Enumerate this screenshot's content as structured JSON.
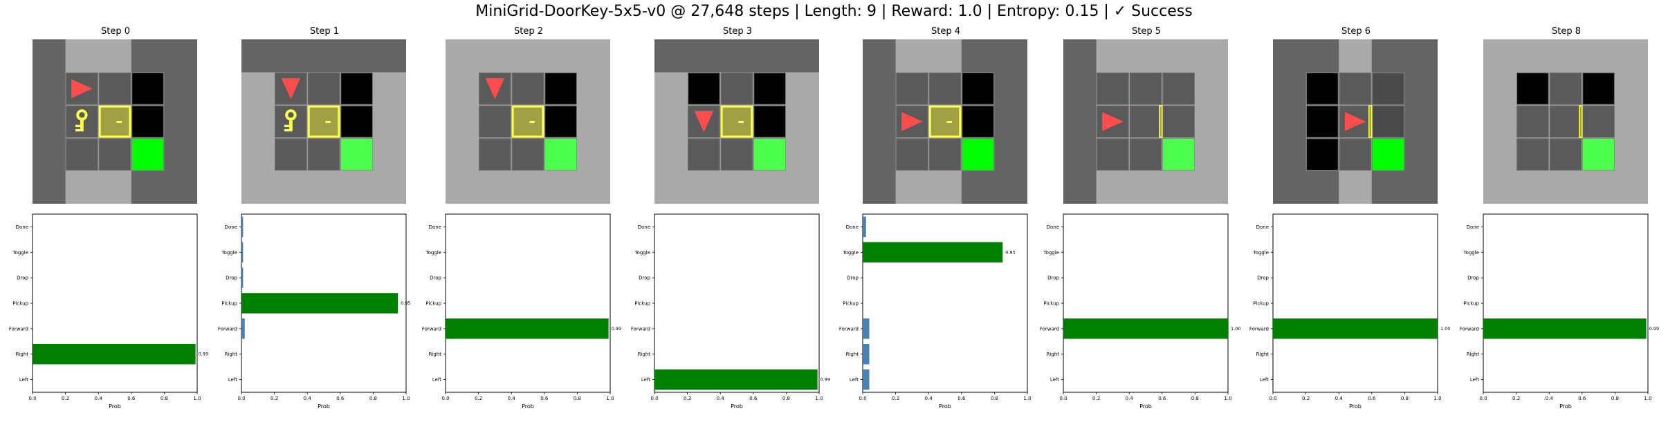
{
  "title": "MiniGrid-DoorKey-5x5-v0 @ 27,648 steps | Length: 9 | Reward: 1.0 | Entropy: 0.15 | ✓ Success",
  "colors": {
    "wall": "#646464",
    "floor": "#8e8e8e",
    "floor_visible": "#a9a9a9",
    "unseen": "#000000",
    "agent": "#ff4d4d",
    "key": "#ffff4d",
    "door_fill": "#a0a044",
    "door_border": "#ffff4d",
    "goal": "#00ff00",
    "goal_visible": "#4dff4d",
    "bar_top": "#008000",
    "bar_other": "#4682b4"
  },
  "steps": [
    {
      "label": "Step 0",
      "grid": {
        "cells": [
          [
            "W",
            "W",
            "W",
            "W",
            "W"
          ],
          [
            "W",
            "A>",
            "F",
            "U",
            "W"
          ],
          [
            "W",
            "K",
            "D",
            "U",
            "W"
          ],
          [
            "W",
            "F",
            "F",
            "G",
            "W"
          ],
          [
            "W",
            "W",
            "W",
            "W",
            "W"
          ]
        ],
        "dim": [
          [
            0,
            0,
            1,
            1,
            1,
            0
          ],
          [
            0,
            0,
            0,
            0,
            0,
            1
          ],
          [
            1,
            0,
            0,
            0,
            0,
            0
          ],
          [
            1,
            1,
            1,
            1,
            1,
            0
          ],
          [
            1,
            0,
            1,
            1,
            1,
            1
          ],
          [
            1,
            1,
            1,
            1,
            1,
            1
          ]
        ]
      },
      "chart_data": {
        "type": "bar",
        "orientation": "horizontal",
        "categories": [
          "Left",
          "Right",
          "Forward",
          "Pickup",
          "Drop",
          "Toggle",
          "Done"
        ],
        "values": [
          0.0,
          0.99,
          0.0,
          0.0,
          0.0,
          0.0,
          0.0
        ],
        "value_label": "0.99",
        "xlabel": "Prob",
        "xlim": [
          0,
          1
        ],
        "xticks": [
          "0.0",
          "0.2",
          "0.4",
          "0.6",
          "0.8",
          "1.0"
        ]
      }
    },
    {
      "label": "Step 1",
      "grid": {
        "cells": [
          [
            "W",
            "W",
            "W",
            "W",
            "W"
          ],
          [
            "W",
            "Av",
            "F",
            "U",
            "W"
          ],
          [
            "W",
            "K",
            "D",
            "U",
            "W"
          ],
          [
            "W",
            "F",
            "F",
            "G",
            "W"
          ],
          [
            "W",
            "W",
            "W",
            "W",
            "W"
          ]
        ]
      },
      "chart_data": {
        "type": "bar",
        "orientation": "horizontal",
        "categories": [
          "Left",
          "Right",
          "Forward",
          "Pickup",
          "Drop",
          "Toggle",
          "Done"
        ],
        "values": [
          0.0,
          0.0,
          0.02,
          0.95,
          0.01,
          0.01,
          0.01
        ],
        "value_label": "0.95",
        "xlabel": "Prob",
        "xlim": [
          0,
          1
        ],
        "xticks": [
          "0.0",
          "0.2",
          "0.4",
          "0.6",
          "0.8",
          "1.0"
        ]
      }
    },
    {
      "label": "Step 2",
      "grid": {
        "cells": [
          [
            "W",
            "W",
            "W",
            "W",
            "W"
          ],
          [
            "W",
            "Av",
            "F",
            "U",
            "W"
          ],
          [
            "W",
            "F",
            "D",
            "U",
            "W"
          ],
          [
            "W",
            "F",
            "F",
            "G",
            "W"
          ],
          [
            "W",
            "W",
            "W",
            "W",
            "W"
          ]
        ]
      },
      "chart_data": {
        "type": "bar",
        "orientation": "horizontal",
        "categories": [
          "Left",
          "Right",
          "Forward",
          "Pickup",
          "Drop",
          "Toggle",
          "Done"
        ],
        "values": [
          0.0,
          0.0,
          0.99,
          0.0,
          0.0,
          0.0,
          0.0
        ],
        "value_label": "0.99",
        "xlabel": "Prob",
        "xlim": [
          0,
          1
        ],
        "xticks": [
          "0.0",
          "0.2",
          "0.4",
          "0.6",
          "0.8",
          "1.0"
        ]
      }
    },
    {
      "label": "Step 3",
      "grid": {
        "cells": [
          [
            "W",
            "W",
            "W",
            "W",
            "W"
          ],
          [
            "W",
            "U",
            "F",
            "U",
            "W"
          ],
          [
            "W",
            "Av",
            "D",
            "U",
            "W"
          ],
          [
            "W",
            "F",
            "F",
            "G",
            "W"
          ],
          [
            "W",
            "W",
            "W",
            "W",
            "W"
          ]
        ]
      },
      "chart_data": {
        "type": "bar",
        "orientation": "horizontal",
        "categories": [
          "Left",
          "Right",
          "Forward",
          "Pickup",
          "Drop",
          "Toggle",
          "Done"
        ],
        "values": [
          0.99,
          0.0,
          0.0,
          0.0,
          0.0,
          0.0,
          0.0
        ],
        "value_label": "0.99",
        "xlabel": "Prob",
        "xlim": [
          0,
          1
        ],
        "xticks": [
          "0.0",
          "0.2",
          "0.4",
          "0.6",
          "0.8",
          "1.0"
        ]
      }
    },
    {
      "label": "Step 4",
      "grid": {
        "cells": [
          [
            "W",
            "W",
            "W",
            "W",
            "W"
          ],
          [
            "W",
            "F",
            "F",
            "U",
            "W"
          ],
          [
            "W",
            "A>",
            "D",
            "U",
            "W"
          ],
          [
            "W",
            "F",
            "F",
            "G",
            "W"
          ],
          [
            "W",
            "W",
            "W",
            "W",
            "W"
          ]
        ]
      },
      "chart_data": {
        "type": "bar",
        "orientation": "horizontal",
        "categories": [
          "Left",
          "Right",
          "Forward",
          "Pickup",
          "Drop",
          "Toggle",
          "Done"
        ],
        "values": [
          0.04,
          0.04,
          0.04,
          0.0,
          0.0,
          0.85,
          0.02
        ],
        "value_label": "0.85",
        "xlabel": "Prob",
        "xlim": [
          0,
          1
        ],
        "xticks": [
          "0.0",
          "0.2",
          "0.4",
          "0.6",
          "0.8",
          "1.0"
        ]
      }
    },
    {
      "label": "Step 5",
      "grid": {
        "cells": [
          [
            "W",
            "W",
            "W",
            "W",
            "W"
          ],
          [
            "W",
            "F",
            "F",
            "F",
            "W"
          ],
          [
            "W",
            "A>",
            "F",
            "O",
            "W"
          ],
          [
            "W",
            "F",
            "F",
            "G",
            "W"
          ],
          [
            "W",
            "W",
            "W",
            "W",
            "W"
          ]
        ]
      },
      "chart_data": {
        "type": "bar",
        "orientation": "horizontal",
        "categories": [
          "Left",
          "Right",
          "Forward",
          "Pickup",
          "Drop",
          "Toggle",
          "Done"
        ],
        "values": [
          0.0,
          0.0,
          1.0,
          0.0,
          0.0,
          0.0,
          0.0
        ],
        "value_label": "1.00",
        "xlabel": "Prob",
        "xlim": [
          0,
          1
        ],
        "xticks": [
          "0.0",
          "0.2",
          "0.4",
          "0.6",
          "0.8",
          "1.0"
        ]
      }
    },
    {
      "label": "Step 6",
      "grid": {
        "cells": [
          [
            "W",
            "W",
            "W",
            "W",
            "W"
          ],
          [
            "W",
            "U",
            "F",
            "F",
            "W"
          ],
          [
            "W",
            "U",
            "A>",
            "O",
            "W"
          ],
          [
            "W",
            "U",
            "F",
            "G",
            "W"
          ],
          [
            "W",
            "W",
            "W",
            "W",
            "W"
          ]
        ]
      },
      "chart_data": {
        "type": "bar",
        "orientation": "horizontal",
        "categories": [
          "Left",
          "Right",
          "Forward",
          "Pickup",
          "Drop",
          "Toggle",
          "Done"
        ],
        "values": [
          0.0,
          0.0,
          1.0,
          0.0,
          0.0,
          0.0,
          0.0
        ],
        "value_label": "1.00",
        "xlabel": "Prob",
        "xlim": [
          0,
          1
        ],
        "xticks": [
          "0.0",
          "0.2",
          "0.4",
          "0.6",
          "0.8",
          "1.0"
        ]
      }
    },
    {
      "label": "Step 8",
      "grid": {
        "cells": [
          [
            "W",
            "W",
            "W",
            "W",
            "W"
          ],
          [
            "W",
            "U",
            "F",
            "U",
            "W"
          ],
          [
            "W",
            "F",
            "F",
            "O",
            "W"
          ],
          [
            "W",
            "F",
            "F",
            "G",
            "W"
          ],
          [
            "W",
            "W",
            "W",
            "W",
            "W"
          ]
        ]
      },
      "chart_data": {
        "type": "bar",
        "orientation": "horizontal",
        "categories": [
          "Left",
          "Right",
          "Forward",
          "Pickup",
          "Drop",
          "Toggle",
          "Done"
        ],
        "values": [
          0.0,
          0.0,
          0.99,
          0.0,
          0.0,
          0.0,
          0.0
        ],
        "value_label": "0.99",
        "xlabel": "Prob",
        "xlim": [
          0,
          1
        ],
        "xticks": [
          "0.0",
          "0.2",
          "0.4",
          "0.6",
          "0.8",
          "1.0"
        ]
      }
    }
  ]
}
